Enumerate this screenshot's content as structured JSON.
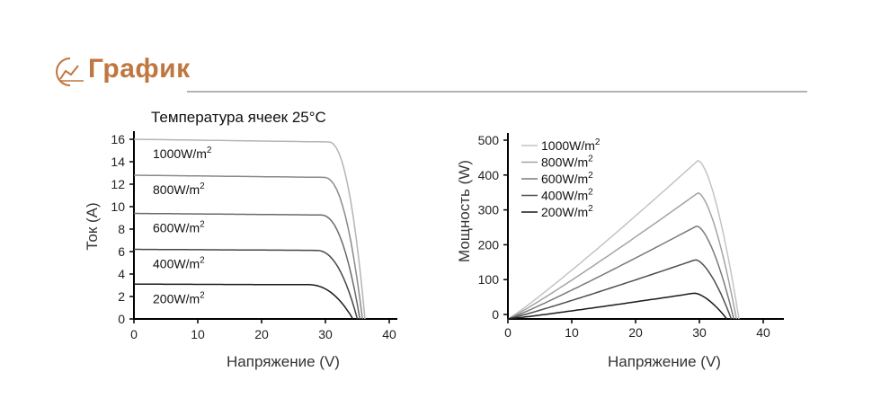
{
  "header": {
    "title": "График",
    "icon": "line-chart-icon",
    "accent_color": "#c0763f"
  },
  "chart_data": [
    {
      "type": "line",
      "title": "Температура ячеек 25°C",
      "xlabel": "Напряжение (V)",
      "ylabel": "Ток (A)",
      "xlim": [
        0,
        40
      ],
      "ylim": [
        0,
        16
      ],
      "xticks": [
        0,
        10,
        20,
        30,
        40
      ],
      "yticks": [
        0,
        2,
        4,
        6,
        8,
        10,
        12,
        14,
        16
      ],
      "grid": false,
      "series": [
        {
          "name": "1000W/m²",
          "label_base": "1000W/m",
          "color": "#b4b4b4",
          "isc": 16.0,
          "voc": 36.2,
          "knee": 30.5
        },
        {
          "name": "800W/m²",
          "label_base": "800W/m",
          "color": "#8a8a8a",
          "isc": 12.8,
          "voc": 35.8,
          "knee": 29.8
        },
        {
          "name": "600W/m²",
          "label_base": "600W/m",
          "color": "#6a6a6a",
          "isc": 9.4,
          "voc": 35.4,
          "knee": 29.3
        },
        {
          "name": "400W/m²",
          "label_base": "400W/m",
          "color": "#464646",
          "isc": 6.2,
          "voc": 35.0,
          "knee": 28.6
        },
        {
          "name": "200W/m²",
          "label_base": "200W/m",
          "color": "#1a1a1a",
          "isc": 3.1,
          "voc": 34.3,
          "knee": 27.3
        }
      ]
    },
    {
      "type": "line",
      "xlabel": "Напряжение (V)",
      "ylabel": "Мощность (W)",
      "xlim": [
        0,
        40
      ],
      "ylim": [
        0,
        500
      ],
      "xticks": [
        0,
        10,
        20,
        30,
        40
      ],
      "yticks": [
        0,
        100,
        200,
        300,
        400,
        500
      ],
      "grid": false,
      "legend_position": "top-left",
      "series": [
        {
          "name": "1000W/m²",
          "label_base": "1000W/m",
          "color": "#c4c4c4",
          "peak_v": 29.8,
          "peak_p": 455,
          "voc": 36.2
        },
        {
          "name": "800W/m²",
          "label_base": "800W/m",
          "color": "#a4a4a4",
          "peak_v": 29.8,
          "peak_p": 362,
          "voc": 35.8
        },
        {
          "name": "600W/m²",
          "label_base": "600W/m",
          "color": "#7a7a7a",
          "peak_v": 29.6,
          "peak_p": 267,
          "voc": 35.4
        },
        {
          "name": "400W/m²",
          "label_base": "400W/m",
          "color": "#4e4e4e",
          "peak_v": 29.4,
          "peak_p": 170,
          "voc": 35.0
        },
        {
          "name": "200W/m²",
          "label_base": "200W/m",
          "color": "#1a1a1a",
          "peak_v": 29.2,
          "peak_p": 74,
          "voc": 34.3
        }
      ]
    }
  ]
}
